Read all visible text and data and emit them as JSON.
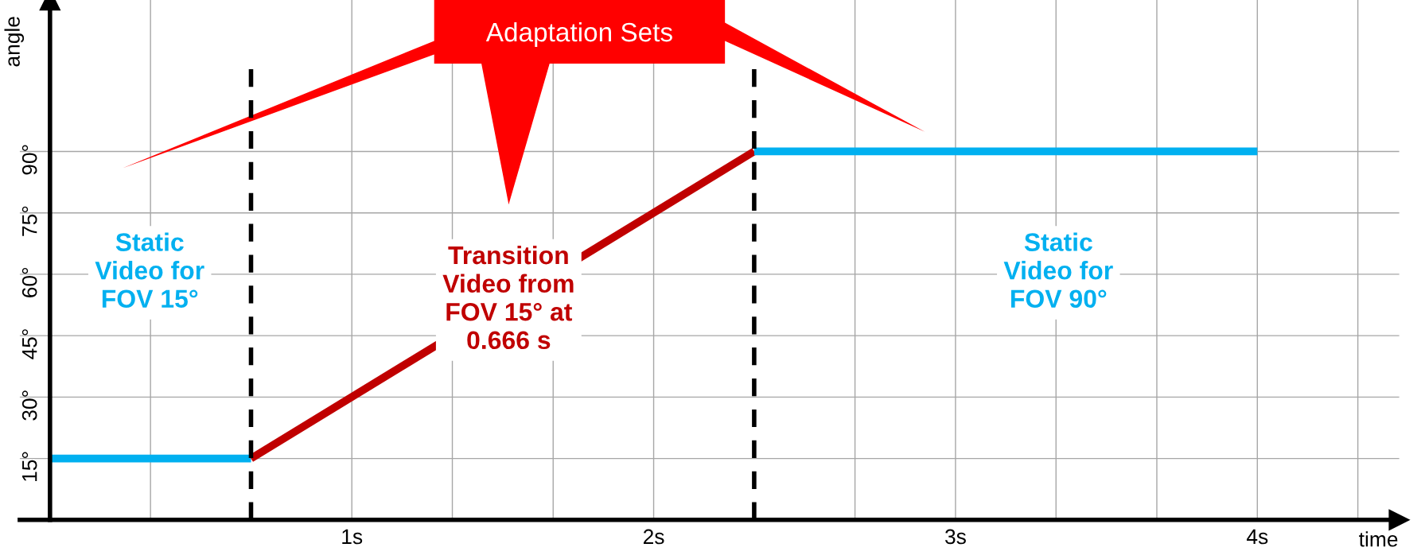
{
  "chart_data": {
    "type": "line",
    "xlabel": "time",
    "ylabel": "angle",
    "series": [
      {
        "x": [
          0,
          0.666
        ],
        "values": [
          15,
          15
        ],
        "color": "#00b0f0"
      },
      {
        "x": [
          0.666,
          2.333
        ],
        "values": [
          15,
          90
        ],
        "color": "#c00000"
      },
      {
        "x": [
          2.333,
          4
        ],
        "values": [
          90,
          90
        ],
        "color": "#00b0f0"
      }
    ],
    "xlim": [
      -0.1,
      4.47
    ],
    "ylim": [
      0,
      127
    ],
    "xticks": [
      {
        "value": 0.333,
        "label": null
      },
      {
        "value": 1,
        "label": "1s"
      },
      {
        "value": 1.333,
        "label": null
      },
      {
        "value": 1.667,
        "label": null
      },
      {
        "value": 2,
        "label": "2s"
      },
      {
        "value": 2.667,
        "label": null
      },
      {
        "value": 3,
        "label": "3s"
      },
      {
        "value": 3.333,
        "label": null
      },
      {
        "value": 3.667,
        "label": null
      },
      {
        "value": 4,
        "label": "4s"
      },
      {
        "value": 4.333,
        "label": null
      }
    ],
    "yticks": [
      {
        "value": 15,
        "label": "15°"
      },
      {
        "value": 30,
        "label": "30°"
      },
      {
        "value": 45,
        "label": "45°"
      },
      {
        "value": 60,
        "label": "60°"
      },
      {
        "value": 75,
        "label": "75°"
      },
      {
        "value": 90,
        "label": "90°"
      }
    ],
    "grid": true,
    "marker": "none",
    "line_style": "solid",
    "ref_lines": [
      {
        "axis": "x",
        "value": 0.666,
        "color": "#000000",
        "line_style": "dashed"
      },
      {
        "axis": "x",
        "value": 2.333,
        "color": "#000000",
        "line_style": "dashed"
      }
    ],
    "annotations": [
      "Static\nVideo for\nFOV 15°",
      "Transition\nVideo from\nFOV 15° at\n0.666 s",
      "Static\nVideo for\nFOV 90°",
      "Adaptation Sets"
    ]
  }
}
